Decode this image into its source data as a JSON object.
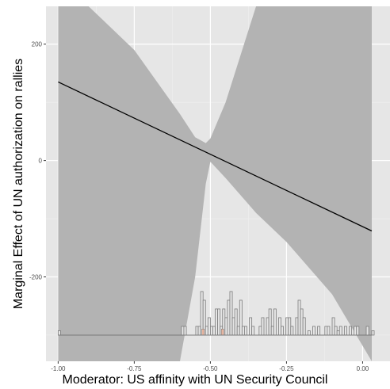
{
  "chart_data": {
    "type": "line",
    "title": "",
    "xlabel": "Moderator: US affinity with UN Security Council",
    "ylabel": "Marginal Effect of UN authorization on rallies",
    "xlim": [
      -1.04,
      0.09
    ],
    "ylim": [
      -345,
      265
    ],
    "x_ticks": [
      -1.0,
      -0.75,
      -0.5,
      -0.25,
      0.0
    ],
    "x_tick_labels": [
      "-1.00",
      "-0.75",
      "-0.50",
      "-0.25",
      "0.00"
    ],
    "y_ticks": [
      -200,
      0,
      200
    ],
    "y_tick_labels": [
      "-200",
      "0",
      "200"
    ],
    "grid": true,
    "series": [
      {
        "kind": "line",
        "x": [
          -1.0,
          0.03
        ],
        "y": [
          135,
          -121
        ]
      },
      {
        "kind": "confidence_band",
        "x": [
          -1.0,
          -0.9,
          -0.75,
          -0.6,
          -0.55,
          -0.515,
          -0.5,
          -0.45,
          -0.35,
          -0.25,
          -0.1,
          0.03
        ],
        "lower": [
          -345,
          -345,
          -345,
          -345,
          -200,
          -40,
          -2,
          -30,
          -90,
          -140,
          -230,
          -345
        ],
        "upper": [
          265,
          265,
          190,
          80,
          40,
          30,
          38,
          100,
          265,
          265,
          265,
          265
        ]
      }
    ],
    "histogram": {
      "baseline": -300,
      "bin_width": 0.008,
      "bins": [
        {
          "x": -1.0,
          "count": 0.5
        },
        {
          "x": -0.595,
          "count": 1
        },
        {
          "x": -0.587,
          "count": 1
        },
        {
          "x": -0.548,
          "count": 1
        },
        {
          "x": -0.54,
          "count": 1
        },
        {
          "x": -0.532,
          "count": 5
        },
        {
          "x": -0.524,
          "count": 4
        },
        {
          "x": -0.516,
          "count": 1
        },
        {
          "x": -0.508,
          "count": 2
        },
        {
          "x": -0.5,
          "count": 1
        },
        {
          "x": -0.492,
          "count": 1
        },
        {
          "x": -0.484,
          "count": 3
        },
        {
          "x": -0.476,
          "count": 3
        },
        {
          "x": -0.468,
          "count": 1
        },
        {
          "x": -0.46,
          "count": 3
        },
        {
          "x": -0.452,
          "count": 2
        },
        {
          "x": -0.444,
          "count": 4
        },
        {
          "x": -0.436,
          "count": 5
        },
        {
          "x": -0.428,
          "count": 2
        },
        {
          "x": -0.42,
          "count": 3
        },
        {
          "x": -0.412,
          "count": 1
        },
        {
          "x": -0.404,
          "count": 4
        },
        {
          "x": -0.396,
          "count": 1
        },
        {
          "x": -0.388,
          "count": 1
        },
        {
          "x": -0.372,
          "count": 2
        },
        {
          "x": -0.364,
          "count": 1
        },
        {
          "x": -0.34,
          "count": 1
        },
        {
          "x": -0.332,
          "count": 2
        },
        {
          "x": -0.316,
          "count": 2
        },
        {
          "x": -0.308,
          "count": 3
        },
        {
          "x": -0.3,
          "count": 1
        },
        {
          "x": -0.292,
          "count": 3
        },
        {
          "x": -0.276,
          "count": 2
        },
        {
          "x": -0.268,
          "count": 1
        },
        {
          "x": -0.252,
          "count": 2
        },
        {
          "x": -0.244,
          "count": 2
        },
        {
          "x": -0.236,
          "count": 1
        },
        {
          "x": -0.22,
          "count": 2
        },
        {
          "x": -0.212,
          "count": 4
        },
        {
          "x": -0.204,
          "count": 3
        },
        {
          "x": -0.196,
          "count": 2
        },
        {
          "x": -0.18,
          "count": 0.5
        },
        {
          "x": -0.164,
          "count": 1
        },
        {
          "x": -0.148,
          "count": 1
        },
        {
          "x": -0.124,
          "count": 1
        },
        {
          "x": -0.116,
          "count": 1
        },
        {
          "x": -0.1,
          "count": 2
        },
        {
          "x": -0.092,
          "count": 1
        },
        {
          "x": -0.084,
          "count": 0.5
        },
        {
          "x": -0.076,
          "count": 1
        },
        {
          "x": -0.06,
          "count": 1
        },
        {
          "x": -0.044,
          "count": 1
        },
        {
          "x": -0.028,
          "count": 1
        },
        {
          "x": -0.02,
          "count": 1
        },
        {
          "x": 0.012,
          "count": 1
        },
        {
          "x": 0.03,
          "count": 0.5
        }
      ],
      "highlighted": [
        {
          "x": -0.528,
          "count": 0.7
        },
        {
          "x": -0.464,
          "count": 0.7
        }
      ]
    },
    "colors": {
      "panel_background": "#e6e6e6",
      "grid_major": "#ffffff",
      "grid_minor": "#f0f0f0",
      "band": "#b3b3b3",
      "line": "#000000",
      "hist_stroke": "#7a7a7a",
      "hist_fill": "#e6e6e6",
      "highlight_fill": "#e8b5a0",
      "axis_text": "#4d4d4d"
    }
  }
}
